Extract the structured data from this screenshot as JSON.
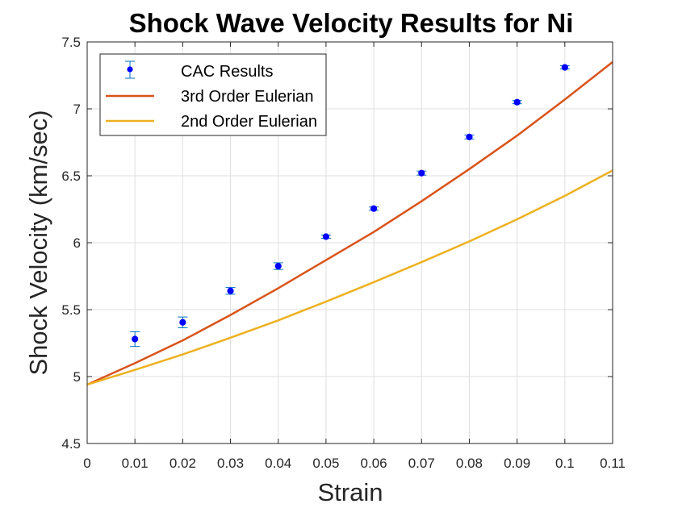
{
  "chart_data": {
    "type": "line",
    "title": "Shock Wave Velocity Results for Ni",
    "xlabel": "Strain",
    "ylabel": "Shock Velocity (km/sec)",
    "xlim": [
      0,
      0.11
    ],
    "ylim": [
      4.5,
      7.5
    ],
    "xticks": [
      0,
      0.01,
      0.02,
      0.03,
      0.04,
      0.05,
      0.06,
      0.07,
      0.08,
      0.09,
      0.1,
      0.11
    ],
    "xtick_labels": [
      "0",
      "0.01",
      "0.02",
      "0.03",
      "0.04",
      "0.05",
      "0.06",
      "0.07",
      "0.08",
      "0.09",
      "0.1",
      "0.11"
    ],
    "yticks": [
      4.5,
      5,
      5.5,
      6,
      6.5,
      7,
      7.5
    ],
    "ytick_labels": [
      "4.5",
      "5",
      "5.5",
      "6",
      "6.5",
      "7",
      "7.5"
    ],
    "grid": true,
    "legend_position": "top-left",
    "series": [
      {
        "name": "CAC Results",
        "kind": "errorbar",
        "color": "#0000FF",
        "errorbar_color": "#0072BD",
        "x": [
          0.01,
          0.02,
          0.03,
          0.04,
          0.05,
          0.06,
          0.07,
          0.08,
          0.09,
          0.1
        ],
        "y": [
          5.28,
          5.405,
          5.64,
          5.825,
          6.045,
          6.255,
          6.52,
          6.79,
          7.05,
          7.31
        ],
        "err": [
          0.055,
          0.04,
          0.025,
          0.025,
          0.012,
          0.012,
          0.015,
          0.015,
          0.012,
          0.012
        ]
      },
      {
        "name": "3rd Order Eulerian",
        "kind": "line",
        "color": "#D95319",
        "x": [
          0,
          0.01,
          0.02,
          0.03,
          0.04,
          0.05,
          0.06,
          0.07,
          0.08,
          0.09,
          0.1,
          0.11
        ],
        "y": [
          4.94,
          5.1,
          5.27,
          5.46,
          5.66,
          5.87,
          6.08,
          6.31,
          6.55,
          6.8,
          7.07,
          7.35
        ]
      },
      {
        "name": "2nd Order Eulerian",
        "kind": "line",
        "color": "#EDB120",
        "x": [
          0,
          0.01,
          0.02,
          0.03,
          0.04,
          0.05,
          0.06,
          0.07,
          0.08,
          0.09,
          0.1,
          0.11
        ],
        "y": [
          4.94,
          5.05,
          5.165,
          5.29,
          5.42,
          5.56,
          5.705,
          5.855,
          6.01,
          6.175,
          6.35,
          6.54
        ]
      }
    ]
  }
}
